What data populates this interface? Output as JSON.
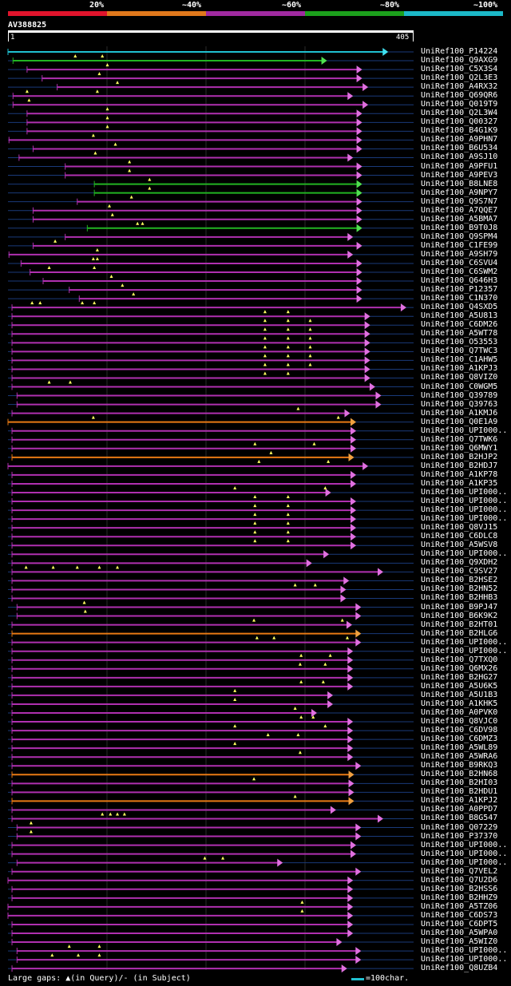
{
  "legend": {
    "labels": [
      "20%",
      "~40%",
      "~60%",
      "~80%",
      "~100%"
    ],
    "colors": [
      "#e0142c",
      "#e0781c",
      "#a02aa0",
      "#1ca01c",
      "#1cb8c8"
    ]
  },
  "query": {
    "name": "AV388825",
    "start_label": "1",
    "end_label": "405",
    "length": 405
  },
  "hits": [
    {
      "name": "UniRef100_P14224",
      "start": 1,
      "end": 375,
      "color": "cyan",
      "marks": []
    },
    {
      "name": "UniRef100_Q9AXG9",
      "start": 6,
      "end": 314,
      "color": "green",
      "marks": [
        68,
        95
      ]
    },
    {
      "name": "UniRef100_C5X3S4",
      "start": 20,
      "end": 349,
      "color": "magenta",
      "marks": [
        100
      ]
    },
    {
      "name": "UniRef100_Q2L3E3",
      "start": 35,
      "end": 349,
      "color": "magenta",
      "marks": [
        92
      ]
    },
    {
      "name": "UniRef100_A4RX32",
      "start": 50,
      "end": 355,
      "color": "magenta",
      "marks": [
        110
      ]
    },
    {
      "name": "UniRef100_Q69QR6",
      "start": 6,
      "end": 340,
      "color": "magenta",
      "marks": [
        20,
        90
      ]
    },
    {
      "name": "UniRef100_Q019T9",
      "start": 6,
      "end": 355,
      "color": "magenta",
      "marks": [
        22
      ]
    },
    {
      "name": "UniRef100_Q2L3W4",
      "start": 20,
      "end": 349,
      "color": "magenta",
      "marks": [
        100
      ]
    },
    {
      "name": "UniRef100_Q00327",
      "start": 20,
      "end": 349,
      "color": "magenta",
      "marks": [
        100
      ]
    },
    {
      "name": "UniRef100_B4G1K9",
      "start": 20,
      "end": 349,
      "color": "magenta",
      "marks": [
        100
      ]
    },
    {
      "name": "UniRef100_A9PHN7",
      "start": 2,
      "end": 349,
      "color": "magenta",
      "marks": [
        86
      ]
    },
    {
      "name": "UniRef100_B6U534",
      "start": 26,
      "end": 349,
      "color": "magenta",
      "marks": [
        108
      ]
    },
    {
      "name": "UniRef100_A9SJ10",
      "start": 12,
      "end": 340,
      "color": "magenta",
      "marks": [
        88
      ]
    },
    {
      "name": "UniRef100_A9PFU1",
      "start": 58,
      "end": 349,
      "color": "magenta",
      "marks": [
        122
      ]
    },
    {
      "name": "UniRef100_A9PEV3",
      "start": 58,
      "end": 349,
      "color": "magenta",
      "marks": [
        122
      ]
    },
    {
      "name": "UniRef100_B8LNE8",
      "start": 87,
      "end": 349,
      "color": "green",
      "marks": [
        142
      ]
    },
    {
      "name": "UniRef100_A9NPY7",
      "start": 87,
      "end": 349,
      "color": "green",
      "marks": [
        142
      ]
    },
    {
      "name": "UniRef100_Q9S7N7",
      "start": 70,
      "end": 349,
      "color": "magenta",
      "marks": [
        124
      ]
    },
    {
      "name": "UniRef100_A7QQE7",
      "start": 26,
      "end": 349,
      "color": "magenta",
      "marks": [
        102
      ]
    },
    {
      "name": "UniRef100_A5BMA7",
      "start": 26,
      "end": 349,
      "color": "magenta",
      "marks": [
        105
      ]
    },
    {
      "name": "UniRef100_B9T0J8",
      "start": 80,
      "end": 349,
      "color": "green",
      "marks": [
        130,
        135
      ]
    },
    {
      "name": "UniRef100_Q9SPM4",
      "start": 58,
      "end": 340,
      "color": "magenta",
      "marks": []
    },
    {
      "name": "UniRef100_C1FE99",
      "start": 26,
      "end": 349,
      "color": "magenta",
      "marks": [
        48
      ]
    },
    {
      "name": "UniRef100_A9SH79",
      "start": 2,
      "end": 340,
      "color": "magenta",
      "marks": [
        90
      ]
    },
    {
      "name": "UniRef100_C6SVU4",
      "start": 14,
      "end": 349,
      "color": "magenta",
      "marks": [
        86,
        90
      ]
    },
    {
      "name": "UniRef100_C6SWM2",
      "start": 23,
      "end": 349,
      "color": "magenta",
      "marks": [
        42,
        87
      ]
    },
    {
      "name": "UniRef100_Q646H3",
      "start": 36,
      "end": 349,
      "color": "magenta",
      "marks": [
        104
      ]
    },
    {
      "name": "UniRef100_P12357",
      "start": 62,
      "end": 349,
      "color": "magenta",
      "marks": [
        115
      ]
    },
    {
      "name": "UniRef100_C1N370",
      "start": 72,
      "end": 349,
      "color": "magenta",
      "marks": [
        126
      ]
    },
    {
      "name": "UniRef100_Q4SXD5",
      "start": 5,
      "end": 393,
      "color": "magenta",
      "marks": [
        25,
        33,
        75,
        87
      ]
    },
    {
      "name": "UniRef100_A5U813",
      "start": 5,
      "end": 357,
      "color": "magenta",
      "marks": [
        257,
        280
      ]
    },
    {
      "name": "UniRef100_C6DM26",
      "start": 5,
      "end": 357,
      "color": "magenta",
      "marks": [
        257,
        280,
        302
      ]
    },
    {
      "name": "UniRef100_A5WT78",
      "start": 5,
      "end": 357,
      "color": "magenta",
      "marks": [
        257,
        280,
        302
      ]
    },
    {
      "name": "UniRef100_O53553",
      "start": 5,
      "end": 357,
      "color": "magenta",
      "marks": [
        257,
        280,
        302
      ]
    },
    {
      "name": "UniRef100_Q7TWC3",
      "start": 5,
      "end": 357,
      "color": "magenta",
      "marks": [
        257,
        280,
        302
      ]
    },
    {
      "name": "UniRef100_C1AHW5",
      "start": 5,
      "end": 357,
      "color": "magenta",
      "marks": [
        257,
        280,
        302
      ]
    },
    {
      "name": "UniRef100_A1KPJ3",
      "start": 5,
      "end": 357,
      "color": "magenta",
      "marks": [
        257,
        280,
        302
      ]
    },
    {
      "name": "UniRef100_Q8VIZ0",
      "start": 5,
      "end": 357,
      "color": "magenta",
      "marks": [
        257,
        280
      ]
    },
    {
      "name": "UniRef100_C0WGM5",
      "start": 5,
      "end": 362,
      "color": "magenta",
      "marks": [
        42,
        63
      ]
    },
    {
      "name": "UniRef100_Q39789",
      "start": 10,
      "end": 368,
      "color": "magenta",
      "marks": []
    },
    {
      "name": "UniRef100_Q39763",
      "start": 10,
      "end": 368,
      "color": "magenta",
      "marks": []
    },
    {
      "name": "UniRef100_A1KMJ6",
      "start": 5,
      "end": 337,
      "color": "magenta",
      "marks": [
        290
      ]
    },
    {
      "name": "UniRef100_Q0E1A9",
      "start": 1,
      "end": 343,
      "color": "orange",
      "marks": [
        86,
        330
      ]
    },
    {
      "name": "UniRef100_UPI000..",
      "start": 5,
      "end": 343,
      "color": "magenta",
      "marks": []
    },
    {
      "name": "UniRef100_Q7TWK6",
      "start": 5,
      "end": 343,
      "color": "magenta",
      "marks": []
    },
    {
      "name": "UniRef100_Q6MWY1",
      "start": 5,
      "end": 343,
      "color": "magenta",
      "marks": [
        247,
        306
      ]
    },
    {
      "name": "UniRef100_B2HJP2",
      "start": 5,
      "end": 341,
      "color": "orange",
      "marks": [
        263
      ]
    },
    {
      "name": "UniRef100_B2HDJ7",
      "start": 1,
      "end": 355,
      "color": "magenta",
      "marks": [
        251,
        320
      ]
    },
    {
      "name": "UniRef100_A1KP78",
      "start": 5,
      "end": 343,
      "color": "magenta",
      "marks": []
    },
    {
      "name": "UniRef100_A1KP35",
      "start": 5,
      "end": 343,
      "color": "magenta",
      "marks": []
    },
    {
      "name": "UniRef100_UPI000..",
      "start": 5,
      "end": 318,
      "color": "magenta",
      "marks": [
        227,
        317
      ]
    },
    {
      "name": "UniRef100_UPI000..",
      "start": 5,
      "end": 343,
      "color": "magenta",
      "marks": [
        247,
        280
      ]
    },
    {
      "name": "UniRef100_UPI000..",
      "start": 5,
      "end": 343,
      "color": "magenta",
      "marks": [
        247,
        280
      ]
    },
    {
      "name": "UniRef100_UPI000..",
      "start": 5,
      "end": 343,
      "color": "magenta",
      "marks": [
        247,
        280
      ]
    },
    {
      "name": "UniRef100_Q8VJ15",
      "start": 5,
      "end": 343,
      "color": "magenta",
      "marks": [
        247,
        280
      ]
    },
    {
      "name": "UniRef100_C6DLC8",
      "start": 5,
      "end": 343,
      "color": "magenta",
      "marks": [
        247,
        280
      ]
    },
    {
      "name": "UniRef100_A5WSV8",
      "start": 5,
      "end": 343,
      "color": "magenta",
      "marks": [
        247,
        280
      ]
    },
    {
      "name": "UniRef100_UPI000..",
      "start": 5,
      "end": 316,
      "color": "magenta",
      "marks": []
    },
    {
      "name": "UniRef100_Q9XDH2",
      "start": 5,
      "end": 299,
      "color": "magenta",
      "marks": []
    },
    {
      "name": "UniRef100_C9SV27",
      "start": 5,
      "end": 370,
      "color": "magenta",
      "marks": [
        19,
        46,
        70,
        92,
        110
      ]
    },
    {
      "name": "UniRef100_B2HSE2",
      "start": 5,
      "end": 336,
      "color": "magenta",
      "marks": []
    },
    {
      "name": "UniRef100_B2HN52",
      "start": 5,
      "end": 333,
      "color": "magenta",
      "marks": [
        287,
        307
      ]
    },
    {
      "name": "UniRef100_B2HHB3",
      "start": 5,
      "end": 333,
      "color": "magenta",
      "marks": []
    },
    {
      "name": "UniRef100_B9PJ47",
      "start": 10,
      "end": 348,
      "color": "magenta",
      "marks": [
        77
      ]
    },
    {
      "name": "UniRef100_B6K9K2",
      "start": 10,
      "end": 348,
      "color": "magenta",
      "marks": [
        78
      ]
    },
    {
      "name": "UniRef100_B2HT01",
      "start": 5,
      "end": 339,
      "color": "magenta",
      "marks": [
        246,
        334
      ]
    },
    {
      "name": "UniRef100_B2HLG6",
      "start": 5,
      "end": 348,
      "color": "orange",
      "marks": []
    },
    {
      "name": "UniRef100_UPI000..",
      "start": 5,
      "end": 348,
      "color": "magenta",
      "marks": [
        249,
        266,
        339
      ]
    },
    {
      "name": "UniRef100_UPI000..",
      "start": 5,
      "end": 340,
      "color": "magenta",
      "marks": []
    },
    {
      "name": "UniRef100_Q7TXQ0",
      "start": 5,
      "end": 340,
      "color": "magenta",
      "marks": [
        293,
        322
      ]
    },
    {
      "name": "UniRef100_Q6MX26",
      "start": 5,
      "end": 340,
      "color": "magenta",
      "marks": [
        292,
        317
      ]
    },
    {
      "name": "UniRef100_B2HG27",
      "start": 5,
      "end": 340,
      "color": "magenta",
      "marks": []
    },
    {
      "name": "UniRef100_A5U6K5",
      "start": 5,
      "end": 340,
      "color": "magenta",
      "marks": [
        293,
        315
      ]
    },
    {
      "name": "UniRef100_A5U1B3",
      "start": 5,
      "end": 320,
      "color": "magenta",
      "marks": [
        227
      ]
    },
    {
      "name": "UniRef100_A1KHK5",
      "start": 5,
      "end": 320,
      "color": "magenta",
      "marks": [
        227
      ]
    },
    {
      "name": "UniRef100_A0PVK0",
      "start": 5,
      "end": 304,
      "color": "magenta",
      "marks": [
        287
      ]
    },
    {
      "name": "UniRef100_Q8VJC0",
      "start": 5,
      "end": 340,
      "color": "magenta",
      "marks": [
        293,
        305
      ]
    },
    {
      "name": "UniRef100_C6DV98",
      "start": 5,
      "end": 340,
      "color": "magenta",
      "marks": [
        227,
        317
      ]
    },
    {
      "name": "UniRef100_C6DMZ3",
      "start": 5,
      "end": 340,
      "color": "magenta",
      "marks": [
        260,
        290
      ]
    },
    {
      "name": "UniRef100_A5WL89",
      "start": 5,
      "end": 340,
      "color": "magenta",
      "marks": [
        227
      ]
    },
    {
      "name": "UniRef100_A5WRA6",
      "start": 5,
      "end": 340,
      "color": "magenta",
      "marks": [
        292
      ]
    },
    {
      "name": "UniRef100_B9RKQ3",
      "start": 5,
      "end": 348,
      "color": "magenta",
      "marks": []
    },
    {
      "name": "UniRef100_B2HN68",
      "start": 5,
      "end": 341,
      "color": "orange",
      "marks": []
    },
    {
      "name": "UniRef100_B2HI03",
      "start": 5,
      "end": 341,
      "color": "magenta",
      "marks": [
        246
      ]
    },
    {
      "name": "UniRef100_B2HDU1",
      "start": 5,
      "end": 341,
      "color": "magenta",
      "marks": []
    },
    {
      "name": "UniRef100_A1KPJ2",
      "start": 5,
      "end": 341,
      "color": "orange",
      "marks": [
        287
      ]
    },
    {
      "name": "UniRef100_A0PPD7",
      "start": 5,
      "end": 323,
      "color": "magenta",
      "marks": []
    },
    {
      "name": "UniRef100_B8G547",
      "start": 5,
      "end": 370,
      "color": "magenta",
      "marks": [
        95,
        103,
        110,
        117
      ]
    },
    {
      "name": "UniRef100_Q07229",
      "start": 10,
      "end": 348,
      "color": "magenta",
      "marks": [
        24
      ]
    },
    {
      "name": "UniRef100_P37370",
      "start": 10,
      "end": 348,
      "color": "magenta",
      "marks": [
        24
      ]
    },
    {
      "name": "UniRef100_UPI000..",
      "start": 5,
      "end": 343,
      "color": "magenta",
      "marks": []
    },
    {
      "name": "UniRef100_UPI000..",
      "start": 5,
      "end": 343,
      "color": "magenta",
      "marks": []
    },
    {
      "name": "UniRef100_UPI000..",
      "start": 10,
      "end": 270,
      "color": "magenta",
      "marks": [
        197,
        215
      ]
    },
    {
      "name": "UniRef100_Q7VEL2",
      "start": 5,
      "end": 348,
      "color": "magenta",
      "marks": []
    },
    {
      "name": "UniRef100_Q7U2D6",
      "start": 1,
      "end": 340,
      "color": "magenta",
      "marks": []
    },
    {
      "name": "UniRef100_B2HSS6",
      "start": 5,
      "end": 340,
      "color": "magenta",
      "marks": []
    },
    {
      "name": "UniRef100_B2HHZ9",
      "start": 5,
      "end": 340,
      "color": "magenta",
      "marks": []
    },
    {
      "name": "UniRef100_A5TZ06",
      "start": 1,
      "end": 340,
      "color": "magenta",
      "marks": [
        294
      ]
    },
    {
      "name": "UniRef100_C6DS73",
      "start": 1,
      "end": 340,
      "color": "magenta",
      "marks": [
        294
      ]
    },
    {
      "name": "UniRef100_C6DPT5",
      "start": 5,
      "end": 340,
      "color": "magenta",
      "marks": []
    },
    {
      "name": "UniRef100_A5WPA0",
      "start": 5,
      "end": 340,
      "color": "magenta",
      "marks": []
    },
    {
      "name": "UniRef100_A5WIZ0",
      "start": 5,
      "end": 329,
      "color": "magenta",
      "marks": []
    },
    {
      "name": "UniRef100_UPI000..",
      "start": 10,
      "end": 348,
      "color": "magenta",
      "marks": [
        62,
        92
      ]
    },
    {
      "name": "UniRef100_UPI000..",
      "start": 10,
      "end": 348,
      "color": "magenta",
      "marks": [
        45,
        71,
        92
      ]
    },
    {
      "name": "UniRef100_Q8UZB4",
      "start": 5,
      "end": 334,
      "color": "magenta",
      "marks": []
    }
  ],
  "footer": {
    "text": "Large gaps: ▲(in Query)/- (in Subject)",
    "scale_label": "=100char."
  }
}
